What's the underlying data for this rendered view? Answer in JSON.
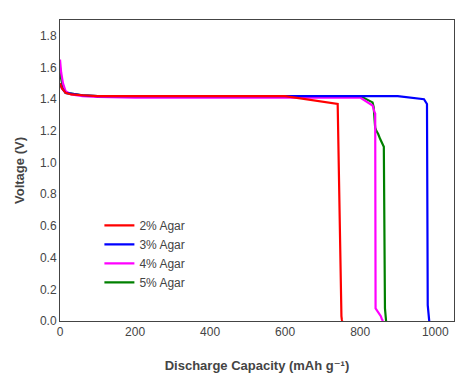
{
  "chart_data": {
    "type": "line",
    "xlabel": "Discharge Capacity (mAh g⁻¹)",
    "ylabel": "Voltage (V)",
    "xlim": [
      0,
      1050
    ],
    "ylim": [
      0.0,
      1.9
    ],
    "xticks": [
      0,
      200,
      400,
      600,
      800,
      1000
    ],
    "yticks": [
      {
        "value": 0.0,
        "label": "0.0"
      },
      0.2,
      0.4,
      0.6,
      0.8,
      {
        "value": 1.0,
        "label": "1.0"
      },
      1.2,
      1.4,
      1.6,
      1.8
    ],
    "grid": false,
    "legend": "lower left",
    "series": [
      {
        "name": "2% Agar",
        "color": "red",
        "x": [
          0,
          5,
          15,
          30,
          60,
          100,
          200,
          400,
          600,
          740,
          748,
          750,
          751,
          752
        ],
        "values": [
          1.5,
          1.47,
          1.44,
          1.43,
          1.425,
          1.42,
          1.42,
          1.42,
          1.42,
          1.37,
          0.1,
          0.03,
          0.01,
          0.0
        ]
      },
      {
        "name": "3% Agar",
        "color": "blue",
        "x": [
          0,
          5,
          15,
          30,
          60,
          100,
          200,
          400,
          600,
          800,
          900,
          970,
          978,
          980,
          982,
          984
        ],
        "values": [
          1.5,
          1.47,
          1.44,
          1.435,
          1.425,
          1.42,
          1.42,
          1.42,
          1.42,
          1.42,
          1.42,
          1.4,
          1.37,
          0.1,
          0.03,
          0.0
        ]
      },
      {
        "name": "4% Agar",
        "color": "magenta",
        "x": [
          0,
          3,
          8,
          15,
          30,
          60,
          100,
          200,
          400,
          600,
          800,
          833,
          836,
          838,
          839,
          840,
          841,
          855,
          858,
          860,
          861
        ],
        "values": [
          1.65,
          1.57,
          1.5,
          1.45,
          1.43,
          1.42,
          1.415,
          1.41,
          1.41,
          1.41,
          1.41,
          1.36,
          1.32,
          1.32,
          1.315,
          1.31,
          0.08,
          0.03,
          0.01,
          0.005,
          0.0
        ]
      },
      {
        "name": "5% Agar",
        "color": "green",
        "x": [
          0,
          3,
          8,
          15,
          30,
          60,
          100,
          200,
          400,
          600,
          800,
          833,
          836,
          838,
          840,
          843,
          848,
          853,
          858,
          863,
          866,
          868,
          869
        ],
        "values": [
          1.6,
          1.53,
          1.47,
          1.44,
          1.435,
          1.425,
          1.42,
          1.42,
          1.42,
          1.42,
          1.42,
          1.38,
          1.35,
          1.28,
          1.22,
          1.2,
          1.18,
          1.15,
          1.12,
          1.1,
          0.08,
          0.02,
          0.0
        ]
      }
    ]
  }
}
